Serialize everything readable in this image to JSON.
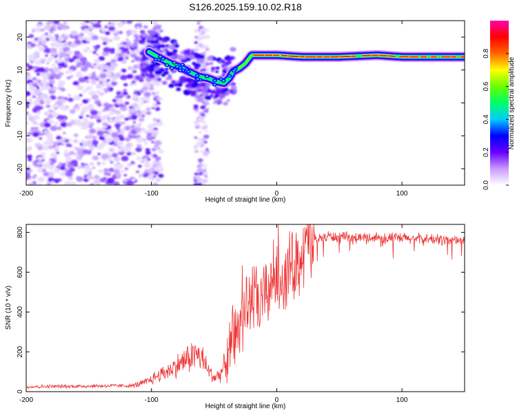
{
  "title": "S126.2025.159.10.02.R18",
  "chart_data": [
    {
      "type": "heatmap",
      "xlabel": "Height of straight line (km)",
      "ylabel": "Frequency (Hz)",
      "xlim": [
        -200,
        150
      ],
      "ylim": [
        -25,
        25
      ],
      "xticks": [
        -200,
        -100,
        0,
        100
      ],
      "yticks": [
        -20,
        -10,
        0,
        10,
        20
      ],
      "colorbar": {
        "label": "Normalized spectral amplitude",
        "range": [
          0,
          1
        ],
        "ticks": [
          "0.0",
          "0.2",
          "0.4",
          "0.6",
          "0.8"
        ],
        "colors": [
          "#ffffff",
          "#cc99ff",
          "#6600ff",
          "#0000ff",
          "#00ccff",
          "#00ff66",
          "#66ff00",
          "#ffff00",
          "#ff6600",
          "#ff0000",
          "#ff00aa"
        ]
      },
      "ridge": {
        "x": [
          -102,
          -95,
          -85,
          -78,
          -70,
          -62,
          -55,
          -48,
          -42,
          -38,
          -35,
          -30,
          -25,
          -20,
          -10,
          0,
          20,
          50,
          80,
          100,
          150
        ],
        "y": [
          15.5,
          14,
          12,
          11,
          9.5,
          8,
          7.5,
          6.5,
          6,
          7.5,
          9.5,
          10.5,
          12,
          14.5,
          14.5,
          14.5,
          14,
          14,
          14.5,
          14,
          14
        ]
      },
      "strong_ridge_x_from": -35,
      "noise_region_x": [
        -200,
        -100
      ],
      "noise_band_x": [
        -65,
        -55
      ]
    },
    {
      "type": "line",
      "xlabel": "Height of straight line (km)",
      "ylabel": "SNR (10 * v/v)",
      "xlim": [
        -200,
        150
      ],
      "ylim": [
        0,
        840
      ],
      "xticks": [
        -200,
        -100,
        0,
        100
      ],
      "yticks": [
        0,
        200,
        400,
        600,
        800
      ],
      "color": "#ee3333",
      "series": [
        {
          "x": [
            -200,
            -150,
            -115,
            -105,
            -95,
            -85,
            -75,
            -65,
            -60,
            -55,
            -50,
            -45,
            -40,
            -35,
            -30,
            -25,
            -20,
            -15,
            -10,
            -5,
            0,
            5,
            10,
            15,
            20,
            25,
            30,
            40,
            50,
            60,
            80,
            100,
            120,
            150
          ],
          "y": [
            25,
            28,
            30,
            45,
            80,
            110,
            150,
            190,
            170,
            110,
            70,
            90,
            150,
            230,
            330,
            420,
            480,
            430,
            470,
            540,
            600,
            560,
            620,
            650,
            690,
            730,
            760,
            780,
            775,
            770,
            775,
            770,
            765,
            760
          ]
        }
      ]
    }
  ]
}
